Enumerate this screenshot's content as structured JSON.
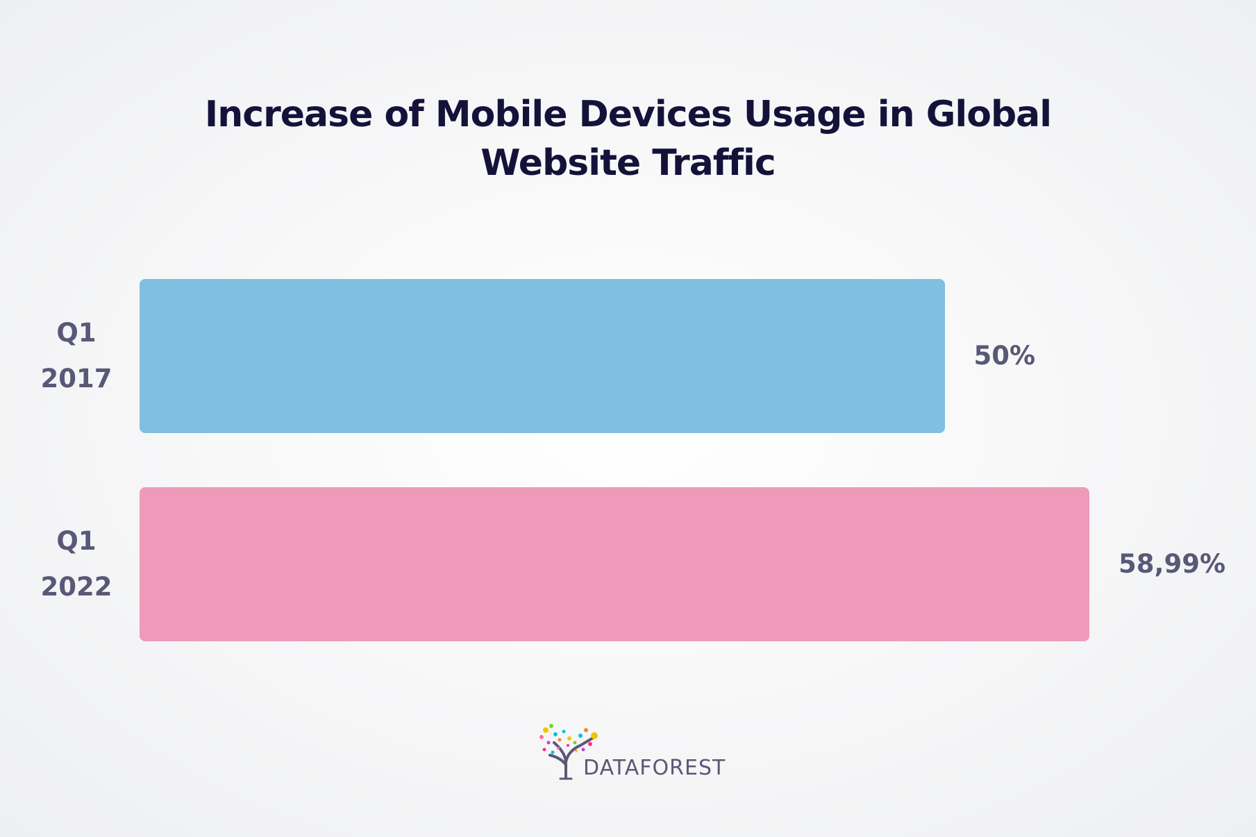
{
  "chart_data": {
    "type": "bar",
    "orientation": "horizontal",
    "title_lines": [
      "Increase of Mobile Devices Usage in Global",
      "Website Traffic"
    ],
    "categories": [
      {
        "lines": [
          "Q1",
          "2017"
        ]
      },
      {
        "lines": [
          "Q1",
          "2022"
        ]
      }
    ],
    "values": [
      50,
      58.99
    ],
    "value_labels": [
      "50%",
      "58,99%"
    ],
    "xlim": [
      0,
      58.99
    ],
    "grid": false,
    "legend": "none",
    "colors": [
      "#80bfdf",
      "#ee9ab8"
    ]
  },
  "logo": {
    "text": "DATAFOREST",
    "icon": "tree-logo-icon"
  }
}
